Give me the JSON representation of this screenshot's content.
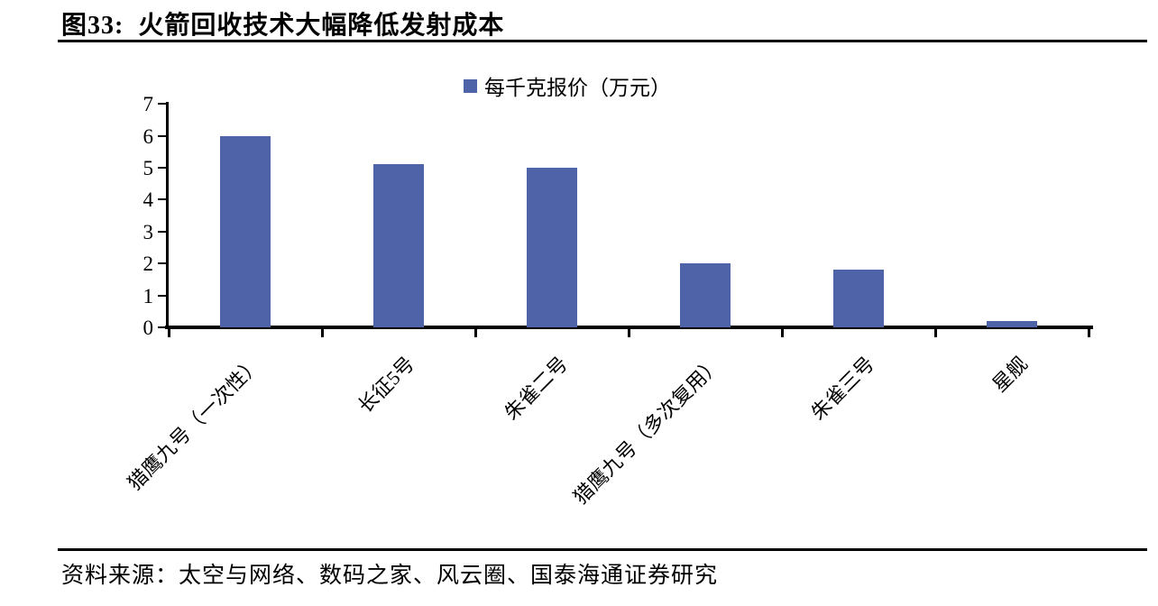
{
  "figure": {
    "label": "图33:",
    "title": "火箭回收技术大幅降低发射成本"
  },
  "source": "资料来源：太空与网络、数码之家、风云圈、国泰海通证券研究",
  "chart_data": {
    "type": "bar",
    "title": "",
    "categories": [
      "猎鹰九号（一次性）",
      "长征5号",
      "朱雀二号",
      "猎鹰九号（多次复用）",
      "朱雀三号",
      "星舰"
    ],
    "series": [
      {
        "name": "每千克报价（万元）",
        "values": [
          6,
          5.1,
          5,
          2,
          1.8,
          0.2
        ]
      }
    ],
    "legend": [
      "每千克报价（万元）"
    ],
    "legend_position": "top",
    "xlabel": "",
    "ylabel": "",
    "ylim": [
      0,
      7
    ],
    "ytick_interval": 1,
    "yticks": [
      0,
      1,
      2,
      3,
      4,
      5,
      6,
      7
    ],
    "grid": false,
    "x_label_rotation": -45,
    "bar_color": "#4E63A8",
    "axis_color": "#000000",
    "text_color": "#000000"
  }
}
